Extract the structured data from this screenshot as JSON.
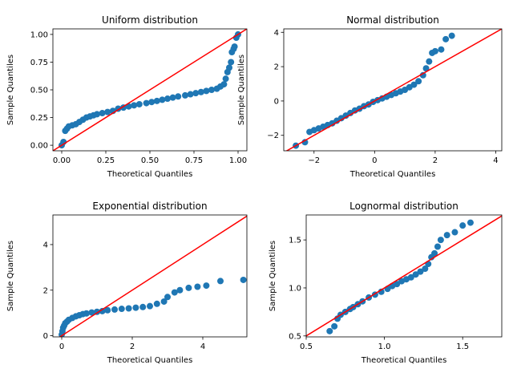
{
  "chart_data": [
    {
      "type": "scatter",
      "title": "Uniform distribution",
      "xlabel": "Theoretical Quantiles",
      "ylabel": "Sample Quantiles",
      "xlim": [
        -0.05,
        1.05
      ],
      "ylim": [
        -0.05,
        1.05
      ],
      "xticks": [
        0.0,
        0.25,
        0.5,
        0.75,
        1.0
      ],
      "xtick_labels": [
        "0.00",
        "0.25",
        "0.50",
        "0.75",
        "1.00"
      ],
      "yticks": [
        0.0,
        0.25,
        0.5,
        0.75,
        1.0
      ],
      "ytick_labels": [
        "0.00",
        "0.25",
        "0.50",
        "0.75",
        "1.00"
      ],
      "grid": false,
      "marker_color": "#1f77b4",
      "reference_line": {
        "color": "#ff0000",
        "slope": 1,
        "intercept": 0
      },
      "points": [
        [
          0.0,
          0.0
        ],
        [
          0.01,
          0.03
        ],
        [
          0.02,
          0.13
        ],
        [
          0.03,
          0.15
        ],
        [
          0.04,
          0.17
        ],
        [
          0.06,
          0.18
        ],
        [
          0.08,
          0.19
        ],
        [
          0.1,
          0.21
        ],
        [
          0.12,
          0.23
        ],
        [
          0.14,
          0.25
        ],
        [
          0.16,
          0.26
        ],
        [
          0.18,
          0.27
        ],
        [
          0.2,
          0.28
        ],
        [
          0.23,
          0.29
        ],
        [
          0.26,
          0.3
        ],
        [
          0.29,
          0.31
        ],
        [
          0.32,
          0.33
        ],
        [
          0.35,
          0.34
        ],
        [
          0.38,
          0.35
        ],
        [
          0.41,
          0.36
        ],
        [
          0.44,
          0.37
        ],
        [
          0.48,
          0.38
        ],
        [
          0.51,
          0.39
        ],
        [
          0.54,
          0.4
        ],
        [
          0.57,
          0.41
        ],
        [
          0.6,
          0.42
        ],
        [
          0.63,
          0.43
        ],
        [
          0.66,
          0.44
        ],
        [
          0.7,
          0.45
        ],
        [
          0.73,
          0.46
        ],
        [
          0.76,
          0.47
        ],
        [
          0.79,
          0.48
        ],
        [
          0.82,
          0.49
        ],
        [
          0.85,
          0.5
        ],
        [
          0.88,
          0.51
        ],
        [
          0.9,
          0.53
        ],
        [
          0.92,
          0.55
        ],
        [
          0.93,
          0.6
        ],
        [
          0.94,
          0.66
        ],
        [
          0.95,
          0.7
        ],
        [
          0.96,
          0.75
        ],
        [
          0.965,
          0.84
        ],
        [
          0.975,
          0.87
        ],
        [
          0.98,
          0.89
        ],
        [
          0.99,
          0.97
        ],
        [
          1.0,
          1.0
        ]
      ]
    },
    {
      "type": "scatter",
      "title": "Normal distribution",
      "xlabel": "Theoretical Quantiles",
      "ylabel": "Sample Quantiles",
      "xlim": [
        -3.0,
        4.2
      ],
      "ylim": [
        -2.9,
        4.2
      ],
      "xticks": [
        -2,
        0,
        2,
        4
      ],
      "xtick_labels": [
        "−2",
        "0",
        "2",
        "4"
      ],
      "yticks": [
        -2,
        0,
        2,
        4
      ],
      "ytick_labels": [
        "−2",
        "0",
        "2",
        "4"
      ],
      "grid": false,
      "marker_color": "#1f77b4",
      "reference_line": {
        "color": "#ff0000",
        "slope": 1,
        "intercept": 0
      },
      "points": [
        [
          -2.6,
          -2.6
        ],
        [
          -2.3,
          -2.4
        ],
        [
          -2.15,
          -1.8
        ],
        [
          -2.0,
          -1.7
        ],
        [
          -1.85,
          -1.6
        ],
        [
          -1.7,
          -1.5
        ],
        [
          -1.55,
          -1.4
        ],
        [
          -1.4,
          -1.3
        ],
        [
          -1.25,
          -1.15
        ],
        [
          -1.1,
          -1.0
        ],
        [
          -0.95,
          -0.85
        ],
        [
          -0.8,
          -0.7
        ],
        [
          -0.65,
          -0.55
        ],
        [
          -0.5,
          -0.45
        ],
        [
          -0.35,
          -0.3
        ],
        [
          -0.2,
          -0.2
        ],
        [
          -0.05,
          -0.05
        ],
        [
          0.1,
          0.05
        ],
        [
          0.25,
          0.15
        ],
        [
          0.4,
          0.25
        ],
        [
          0.55,
          0.35
        ],
        [
          0.7,
          0.45
        ],
        [
          0.85,
          0.55
        ],
        [
          1.0,
          0.65
        ],
        [
          1.15,
          0.8
        ],
        [
          1.3,
          0.95
        ],
        [
          1.45,
          1.15
        ],
        [
          1.6,
          1.5
        ],
        [
          1.7,
          1.9
        ],
        [
          1.8,
          2.3
        ],
        [
          1.9,
          2.8
        ],
        [
          2.0,
          2.9
        ],
        [
          2.2,
          3.0
        ],
        [
          2.35,
          3.6
        ],
        [
          2.55,
          3.8
        ]
      ]
    },
    {
      "type": "scatter",
      "title": "Exponential distribution",
      "xlabel": "Theoretical Quantiles",
      "ylabel": "Sample Quantiles",
      "xlim": [
        -0.25,
        5.25
      ],
      "ylim": [
        -0.05,
        5.3
      ],
      "xticks": [
        0,
        2,
        4
      ],
      "xtick_labels": [
        "0",
        "2",
        "4"
      ],
      "yticks": [
        0,
        2,
        4
      ],
      "ytick_labels": [
        "0",
        "2",
        "4"
      ],
      "grid": false,
      "marker_color": "#1f77b4",
      "reference_line": {
        "color": "#ff0000",
        "slope": 1,
        "intercept": 0
      },
      "points": [
        [
          0.0,
          0.05
        ],
        [
          0.02,
          0.2
        ],
        [
          0.04,
          0.35
        ],
        [
          0.07,
          0.45
        ],
        [
          0.1,
          0.55
        ],
        [
          0.15,
          0.62
        ],
        [
          0.2,
          0.7
        ],
        [
          0.3,
          0.78
        ],
        [
          0.4,
          0.85
        ],
        [
          0.5,
          0.9
        ],
        [
          0.6,
          0.95
        ],
        [
          0.7,
          0.98
        ],
        [
          0.85,
          1.02
        ],
        [
          1.0,
          1.05
        ],
        [
          1.15,
          1.08
        ],
        [
          1.3,
          1.12
        ],
        [
          1.5,
          1.15
        ],
        [
          1.7,
          1.18
        ],
        [
          1.9,
          1.2
        ],
        [
          2.1,
          1.23
        ],
        [
          2.3,
          1.26
        ],
        [
          2.5,
          1.3
        ],
        [
          2.7,
          1.4
        ],
        [
          2.9,
          1.5
        ],
        [
          3.0,
          1.7
        ],
        [
          3.2,
          1.9
        ],
        [
          3.35,
          2.0
        ],
        [
          3.6,
          2.1
        ],
        [
          3.85,
          2.15
        ],
        [
          4.1,
          2.2
        ],
        [
          4.5,
          2.4
        ],
        [
          5.15,
          2.45
        ]
      ]
    },
    {
      "type": "scatter",
      "title": "Lognormal distribution",
      "xlabel": "Theoretical Quantiles",
      "ylabel": "Sample Quantiles",
      "xlim": [
        0.5,
        1.75
      ],
      "ylim": [
        0.49,
        1.76
      ],
      "xticks": [
        0.5,
        1.0,
        1.5
      ],
      "xtick_labels": [
        "0.5",
        "1.0",
        "1.5"
      ],
      "yticks": [
        0.5,
        1.0,
        1.5
      ],
      "ytick_labels": [
        "0.5",
        "1.0",
        "1.5"
      ],
      "grid": false,
      "marker_color": "#1f77b4",
      "reference_line": {
        "color": "#ff0000",
        "slope": 1,
        "intercept": 0
      },
      "points": [
        [
          0.65,
          0.55
        ],
        [
          0.68,
          0.6
        ],
        [
          0.7,
          0.68
        ],
        [
          0.72,
          0.72
        ],
        [
          0.75,
          0.75
        ],
        [
          0.78,
          0.78
        ],
        [
          0.8,
          0.8
        ],
        [
          0.83,
          0.83
        ],
        [
          0.86,
          0.86
        ],
        [
          0.9,
          0.9
        ],
        [
          0.94,
          0.93
        ],
        [
          0.98,
          0.96
        ],
        [
          1.02,
          0.99
        ],
        [
          1.05,
          1.02
        ],
        [
          1.08,
          1.04
        ],
        [
          1.11,
          1.07
        ],
        [
          1.14,
          1.09
        ],
        [
          1.17,
          1.11
        ],
        [
          1.2,
          1.14
        ],
        [
          1.23,
          1.17
        ],
        [
          1.26,
          1.2
        ],
        [
          1.28,
          1.25
        ],
        [
          1.3,
          1.32
        ],
        [
          1.32,
          1.36
        ],
        [
          1.34,
          1.43
        ],
        [
          1.36,
          1.5
        ],
        [
          1.4,
          1.55
        ],
        [
          1.45,
          1.58
        ],
        [
          1.5,
          1.65
        ],
        [
          1.55,
          1.68
        ]
      ]
    }
  ]
}
